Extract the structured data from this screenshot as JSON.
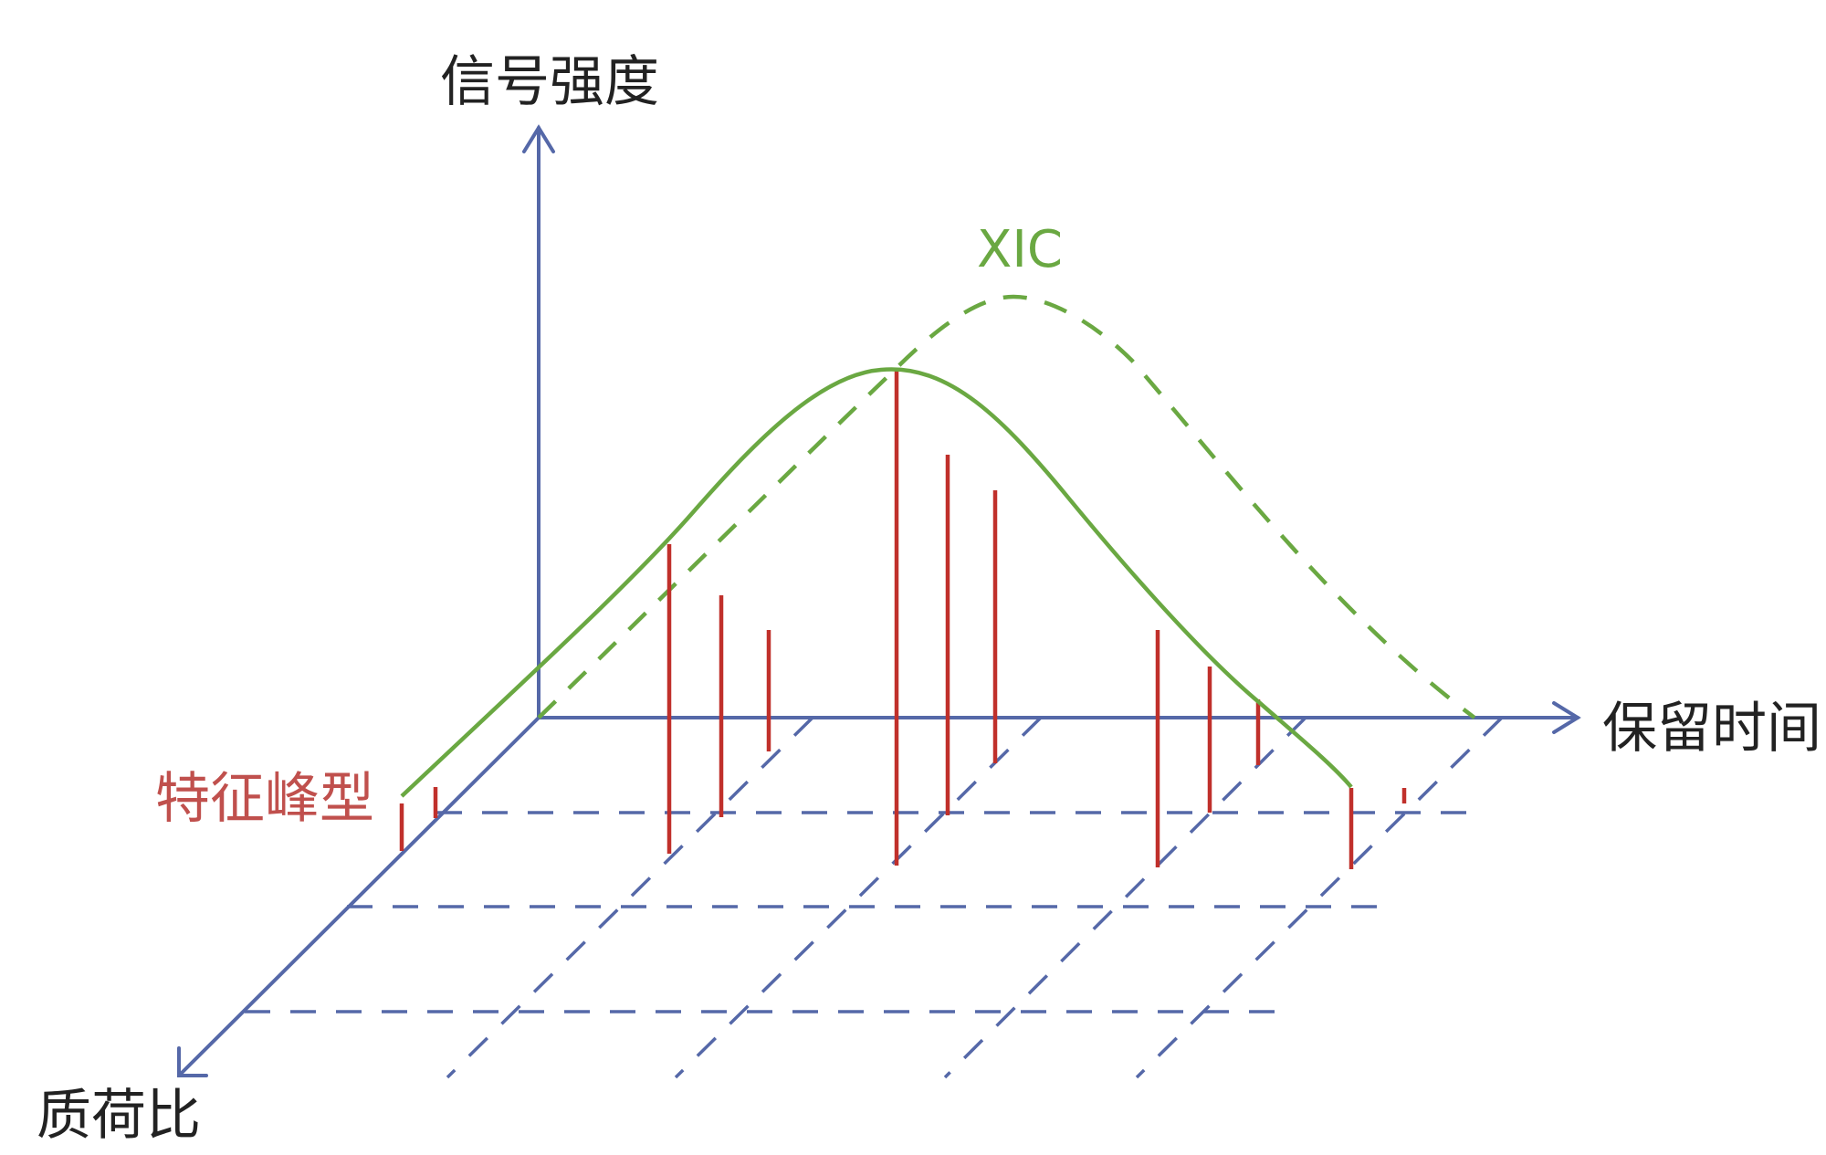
{
  "axes": {
    "intensity_label": "信号强度",
    "retention_time_label": "保留时间",
    "mz_label": "质荷比"
  },
  "annotations": {
    "xic_label": "XIC",
    "feature_peak_label": "特征峰型"
  },
  "colors": {
    "axis": "#5568a8",
    "grid": "#5568a8",
    "xic": "#6aa842",
    "peaks": "#c0302b",
    "peak_label": "#c0504d",
    "text": "#222222"
  }
}
